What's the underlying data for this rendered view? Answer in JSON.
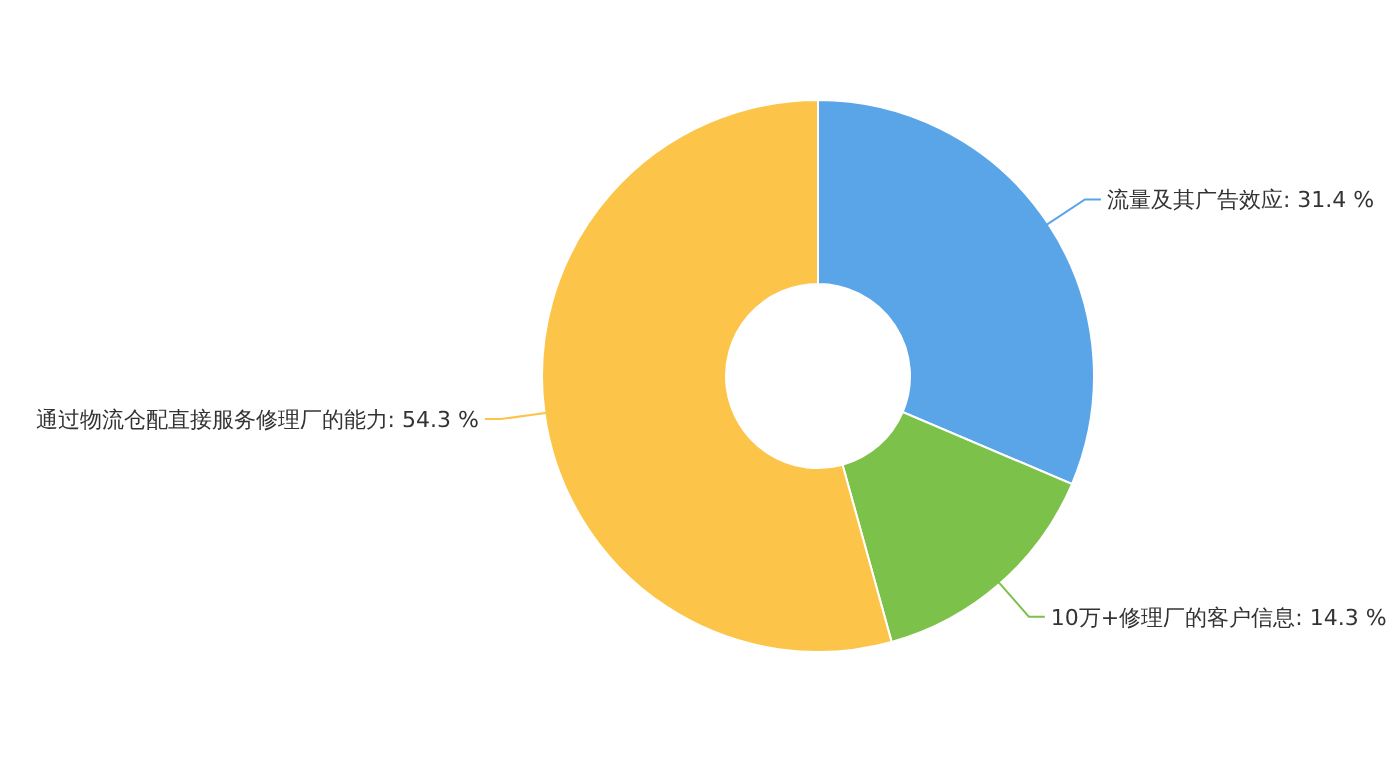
{
  "chart_data": {
    "type": "donut",
    "categories": [
      "流量及其广告效应",
      "10万+修理厂的客户信息",
      "通过物流仓配直接服务修理厂的能力"
    ],
    "values": [
      31.4,
      14.3,
      54.3
    ],
    "value_labels": [
      "31.4 %",
      "14.3 %",
      "54.3 %"
    ],
    "colors": [
      "#5aa5e8",
      "#7cc14a",
      "#fcc54a"
    ]
  }
}
